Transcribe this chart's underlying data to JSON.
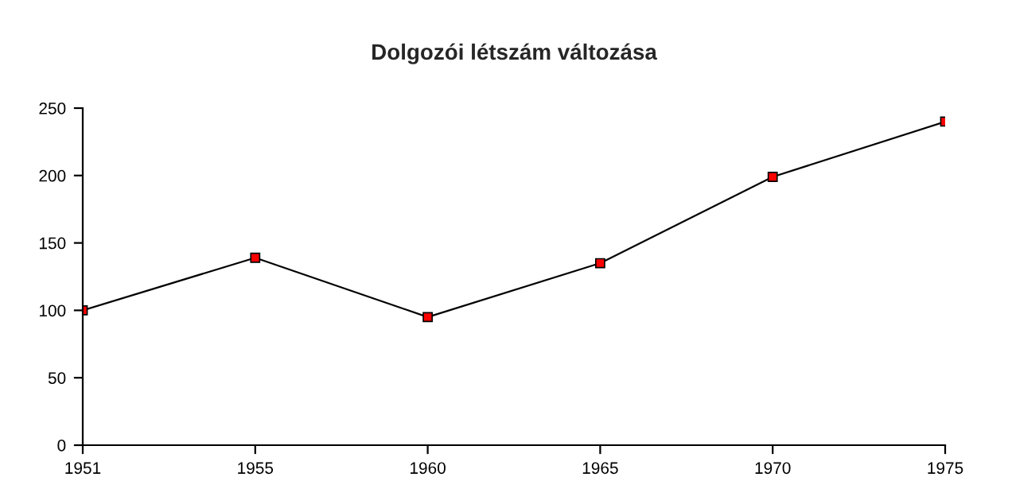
{
  "chart_data": {
    "type": "line",
    "title": "Dolgozói létszám változása",
    "categories": [
      "1951",
      "1955",
      "1960",
      "1965",
      "1970",
      "1975"
    ],
    "series": [
      {
        "color": "#000000",
        "values": [
          100,
          139,
          95,
          135,
          199,
          240
        ]
      }
    ],
    "marker": "square",
    "line_style": "solid",
    "ylim": [
      0,
      250
    ],
    "yticks": [
      0,
      50,
      100,
      150,
      200,
      250
    ],
    "grid": false,
    "legend": false
  }
}
